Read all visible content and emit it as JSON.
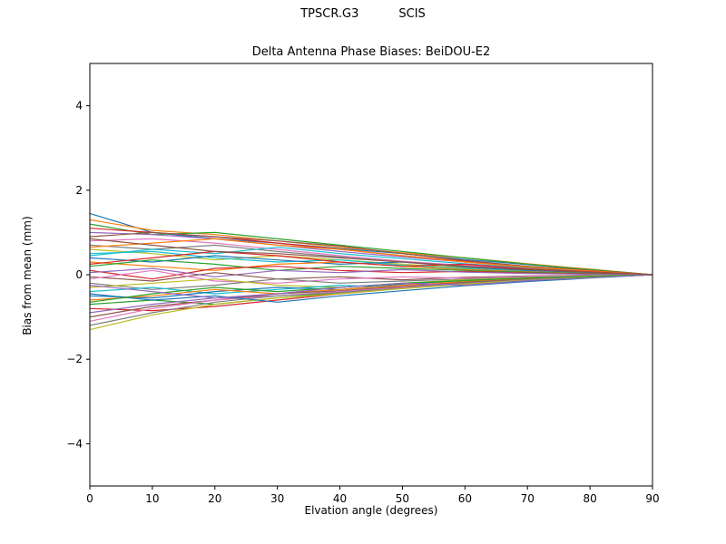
{
  "figure": {
    "suptitle_left": "TPSCR.G3",
    "suptitle_right": "SCIS"
  },
  "chart_data": {
    "type": "line",
    "suptitle": "TPSCR.G3        SCIS",
    "title": "Delta Antenna Phase Biases: BeiDOU-E2",
    "xlabel": "Elvation angle (degrees)",
    "ylabel": "Bias from mean (mm)",
    "xlim": [
      0,
      90
    ],
    "ylim": [
      -5,
      5
    ],
    "grid": false,
    "legend": "none",
    "xtick_values": [
      0,
      10,
      20,
      30,
      40,
      50,
      60,
      70,
      80,
      90
    ],
    "xtick_labels": [
      "0",
      "10",
      "20",
      "30",
      "40",
      "50",
      "60",
      "70",
      "80",
      "90"
    ],
    "ytick_values": [
      -4,
      -2,
      0,
      2,
      4
    ],
    "ytick_labels": [
      "−4",
      "−2",
      "0",
      "2",
      "4"
    ],
    "x": [
      0,
      10,
      20,
      30,
      40,
      50,
      60,
      70,
      80,
      90
    ],
    "palette": [
      "#1f77b4",
      "#ff7f0e",
      "#2ca02c",
      "#d62728",
      "#9467bd",
      "#8c564b",
      "#e377c2",
      "#7f7f7f",
      "#bcbd22",
      "#17becf"
    ],
    "series": [
      {
        "values": [
          1.45,
          1.0,
          0.85,
          0.75,
          0.62,
          0.5,
          0.36,
          0.24,
          0.12,
          0.0
        ]
      },
      {
        "values": [
          1.3,
          1.05,
          0.95,
          0.8,
          0.65,
          0.52,
          0.4,
          0.26,
          0.13,
          0.0
        ]
      },
      {
        "values": [
          1.2,
          0.95,
          1.0,
          0.85,
          0.7,
          0.55,
          0.4,
          0.25,
          0.12,
          0.0
        ]
      },
      {
        "values": [
          1.1,
          1.0,
          0.9,
          0.75,
          0.6,
          0.45,
          0.32,
          0.2,
          0.1,
          0.0
        ]
      },
      {
        "values": [
          1.0,
          0.95,
          0.85,
          0.7,
          0.55,
          0.42,
          0.3,
          0.18,
          0.09,
          0.0
        ]
      },
      {
        "values": [
          0.9,
          1.0,
          0.9,
          0.8,
          0.68,
          0.5,
          0.34,
          0.2,
          0.1,
          0.0
        ]
      },
      {
        "values": [
          0.8,
          0.85,
          0.75,
          0.6,
          0.45,
          0.32,
          0.22,
          0.14,
          0.07,
          0.0
        ]
      },
      {
        "values": [
          0.7,
          0.6,
          0.7,
          0.55,
          0.42,
          0.3,
          0.2,
          0.12,
          0.06,
          0.0
        ]
      },
      {
        "values": [
          0.6,
          0.5,
          0.35,
          0.45,
          0.35,
          0.25,
          0.16,
          0.1,
          0.05,
          0.0
        ]
      },
      {
        "values": [
          0.5,
          0.55,
          0.4,
          0.3,
          0.35,
          0.22,
          0.14,
          0.08,
          0.04,
          0.0
        ]
      },
      {
        "values": [
          0.4,
          0.3,
          0.45,
          0.35,
          0.25,
          0.3,
          0.18,
          0.1,
          0.05,
          0.0
        ]
      },
      {
        "values": [
          0.3,
          0.2,
          0.1,
          0.25,
          0.3,
          0.2,
          0.12,
          0.07,
          0.03,
          0.0
        ]
      },
      {
        "values": [
          0.2,
          0.35,
          0.25,
          0.1,
          0.2,
          0.15,
          0.1,
          0.06,
          0.03,
          0.0
        ]
      },
      {
        "values": [
          0.1,
          -0.1,
          0.15,
          0.2,
          0.1,
          0.05,
          0.08,
          0.04,
          0.02,
          0.0
        ]
      },
      {
        "values": [
          0.05,
          0.15,
          -0.05,
          0.1,
          0.05,
          0.12,
          0.06,
          0.03,
          0.01,
          0.0
        ]
      },
      {
        "values": [
          -0.05,
          -0.15,
          0.05,
          -0.1,
          -0.05,
          -0.12,
          -0.06,
          -0.03,
          -0.01,
          0.0
        ]
      },
      {
        "values": [
          -0.1,
          0.1,
          -0.15,
          -0.2,
          -0.1,
          -0.05,
          -0.08,
          -0.04,
          -0.02,
          0.0
        ]
      },
      {
        "values": [
          -0.2,
          -0.35,
          -0.25,
          -0.1,
          -0.2,
          -0.15,
          -0.1,
          -0.06,
          -0.03,
          0.0
        ]
      },
      {
        "values": [
          -0.3,
          -0.2,
          -0.1,
          -0.25,
          -0.3,
          -0.2,
          -0.12,
          -0.07,
          -0.03,
          0.0
        ]
      },
      {
        "values": [
          -0.4,
          -0.3,
          -0.45,
          -0.35,
          -0.25,
          -0.3,
          -0.18,
          -0.1,
          -0.05,
          0.0
        ]
      },
      {
        "values": [
          -0.5,
          -0.55,
          -0.4,
          -0.3,
          -0.35,
          -0.22,
          -0.14,
          -0.08,
          -0.04,
          0.0
        ]
      },
      {
        "values": [
          -0.6,
          -0.5,
          -0.35,
          -0.45,
          -0.35,
          -0.25,
          -0.16,
          -0.1,
          -0.05,
          0.0
        ]
      },
      {
        "values": [
          -0.7,
          -0.6,
          -0.7,
          -0.55,
          -0.42,
          -0.3,
          -0.2,
          -0.12,
          -0.06,
          0.0
        ]
      },
      {
        "values": [
          -0.8,
          -0.85,
          -0.75,
          -0.6,
          -0.45,
          -0.32,
          -0.22,
          -0.14,
          -0.07,
          0.0
        ]
      },
      {
        "values": [
          -0.9,
          -0.7,
          -0.55,
          -0.5,
          -0.4,
          -0.3,
          -0.2,
          -0.12,
          -0.06,
          0.0
        ]
      },
      {
        "values": [
          -1.0,
          -0.75,
          -0.6,
          -0.45,
          -0.38,
          -0.28,
          -0.18,
          -0.11,
          -0.05,
          0.0
        ]
      },
      {
        "values": [
          -1.1,
          -0.8,
          -0.6,
          -0.5,
          -0.4,
          -0.3,
          -0.2,
          -0.12,
          -0.06,
          0.0
        ]
      },
      {
        "values": [
          -1.2,
          -0.9,
          -0.65,
          -0.5,
          -0.42,
          -0.32,
          -0.2,
          -0.12,
          -0.06,
          0.0
        ]
      },
      {
        "values": [
          -1.3,
          -0.95,
          -0.7,
          -0.55,
          -0.45,
          -0.33,
          -0.22,
          -0.13,
          -0.06,
          0.0
        ]
      },
      {
        "values": [
          0.45,
          0.6,
          0.5,
          0.65,
          0.5,
          0.38,
          0.26,
          0.16,
          0.08,
          0.0
        ]
      },
      {
        "values": [
          -0.45,
          -0.6,
          -0.5,
          -0.65,
          -0.5,
          -0.38,
          -0.26,
          -0.16,
          -0.08,
          0.0
        ]
      },
      {
        "values": [
          0.65,
          0.75,
          0.85,
          0.7,
          0.6,
          0.45,
          0.3,
          0.18,
          0.09,
          0.0
        ]
      },
      {
        "values": [
          -0.65,
          -0.45,
          -0.3,
          -0.4,
          -0.3,
          -0.2,
          -0.14,
          -0.08,
          -0.04,
          0.0
        ]
      },
      {
        "values": [
          0.25,
          0.4,
          0.55,
          0.45,
          0.3,
          0.2,
          0.25,
          0.14,
          0.07,
          0.0
        ]
      },
      {
        "values": [
          -0.25,
          -0.4,
          -0.55,
          -0.45,
          -0.3,
          -0.2,
          -0.25,
          -0.14,
          -0.07,
          0.0
        ]
      },
      {
        "values": [
          0.85,
          0.7,
          0.55,
          0.5,
          0.4,
          0.3,
          0.2,
          0.12,
          0.06,
          0.0
        ]
      }
    ]
  }
}
